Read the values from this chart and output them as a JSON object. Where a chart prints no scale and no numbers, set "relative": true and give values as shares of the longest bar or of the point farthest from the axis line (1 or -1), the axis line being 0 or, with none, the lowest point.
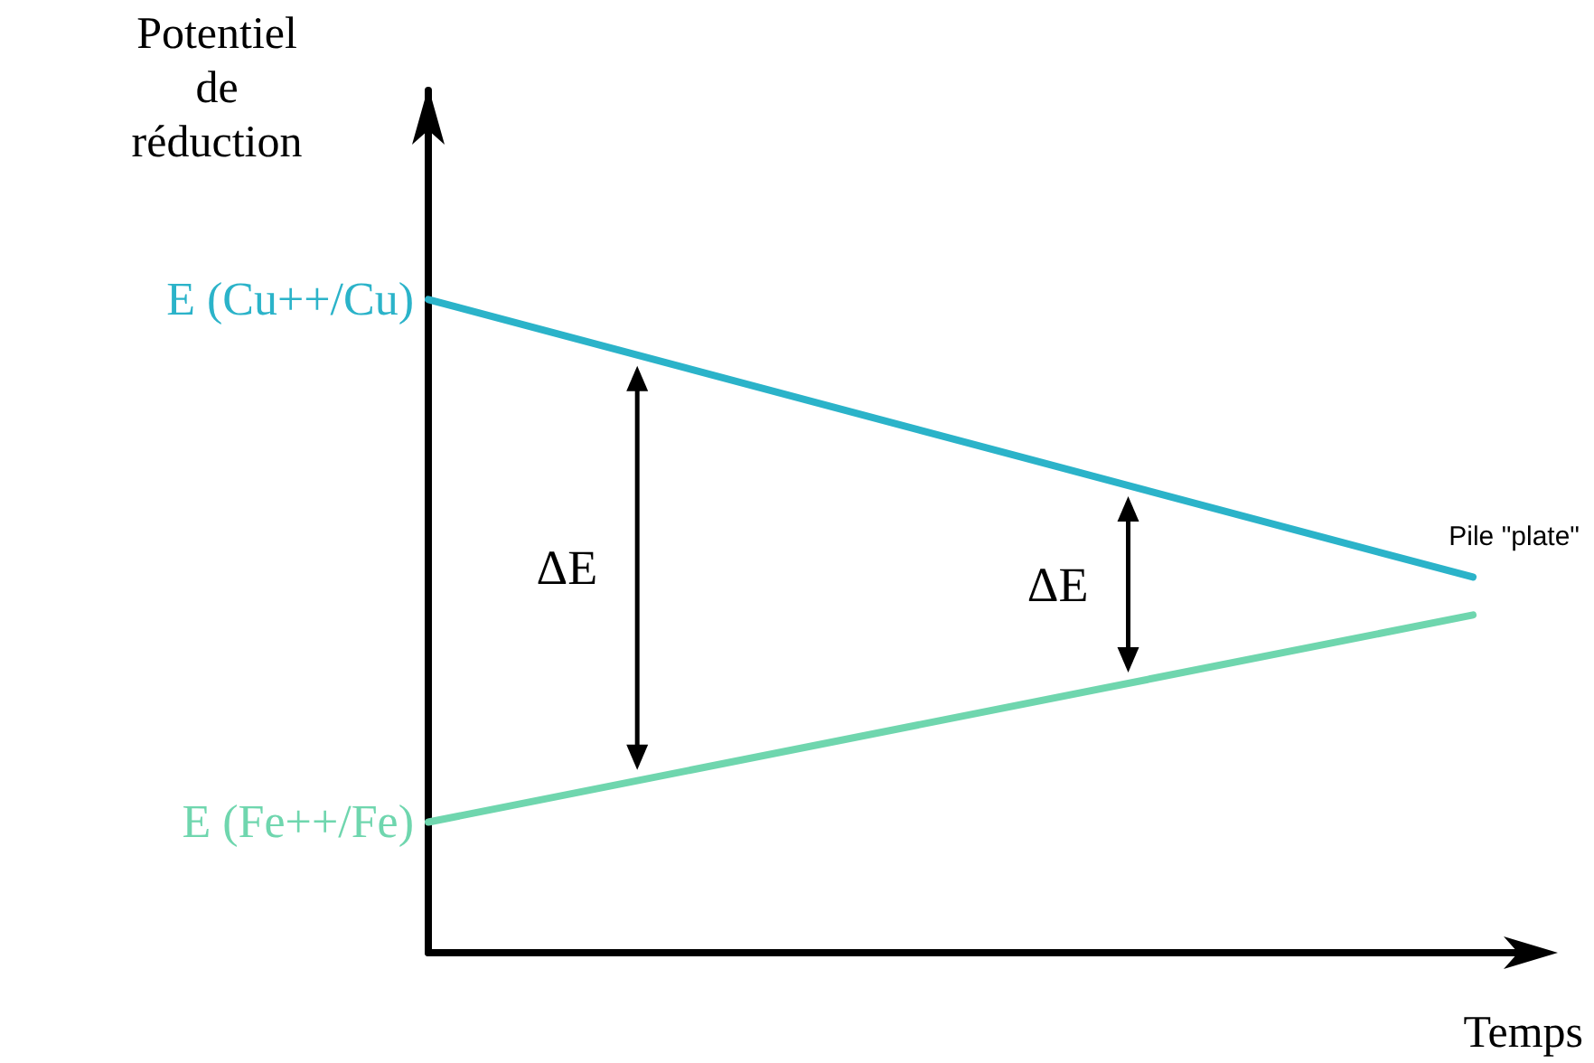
{
  "chart_data": {
    "type": "line",
    "relative": true,
    "xlabel": "Temps",
    "ylabel": "Potentiel de réduction",
    "categories": [
      null,
      null
    ],
    "grid": false,
    "legend": false,
    "marker": "none",
    "line_style": "solid",
    "series": [
      {
        "name": "E (Cu++/Cu)",
        "color": "#2bb3c9",
        "values": [
          1,
          0.575
        ]
      },
      {
        "name": "E (Fe++/Fe)",
        "color": "#6fd6ae",
        "values": [
          0.2,
          0.517
        ]
      }
    ],
    "annotations": [
      "ΔE",
      "ΔE",
      "Pile \"plate\""
    ]
  }
}
